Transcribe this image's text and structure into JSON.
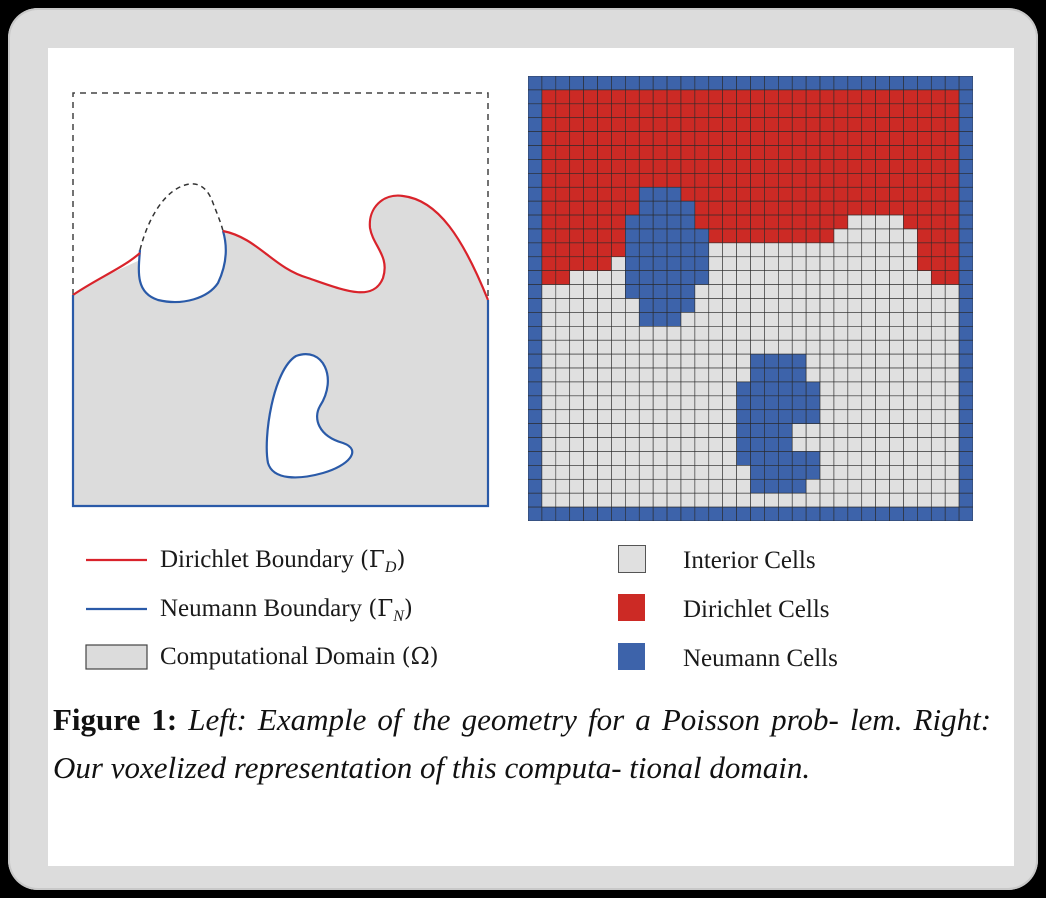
{
  "figure": {
    "number_label": "Figure 1:",
    "caption_line1": "Left: Example of the geometry for a Poisson prob-",
    "caption_line2": "lem. Right: Our voxelized representation of this computa-",
    "caption_line3": "tional domain."
  },
  "legend_left": {
    "dirichlet": {
      "text": "Dirichlet Boundary",
      "symbol": "(Γ",
      "subscript": "D",
      "close": ")"
    },
    "neumann": {
      "text": "Neumann Boundary",
      "symbol": "(Γ",
      "subscript": "N",
      "close": ")"
    },
    "domain": {
      "text": "Computational Domain",
      "symbol": "(Ω)"
    }
  },
  "legend_right": {
    "interior": "Interior Cells",
    "dirichlet": "Dirichlet Cells",
    "neumann": "Neumann Cells"
  },
  "colors": {
    "dirichlet_line": "#d9232b",
    "neumann_line": "#2a5aa8",
    "domain_fill": "#dcdcdc",
    "interior_cell": "#e0e0e0",
    "dirichlet_cell": "#cc2a25",
    "neumann_cell": "#3d63aa"
  }
}
